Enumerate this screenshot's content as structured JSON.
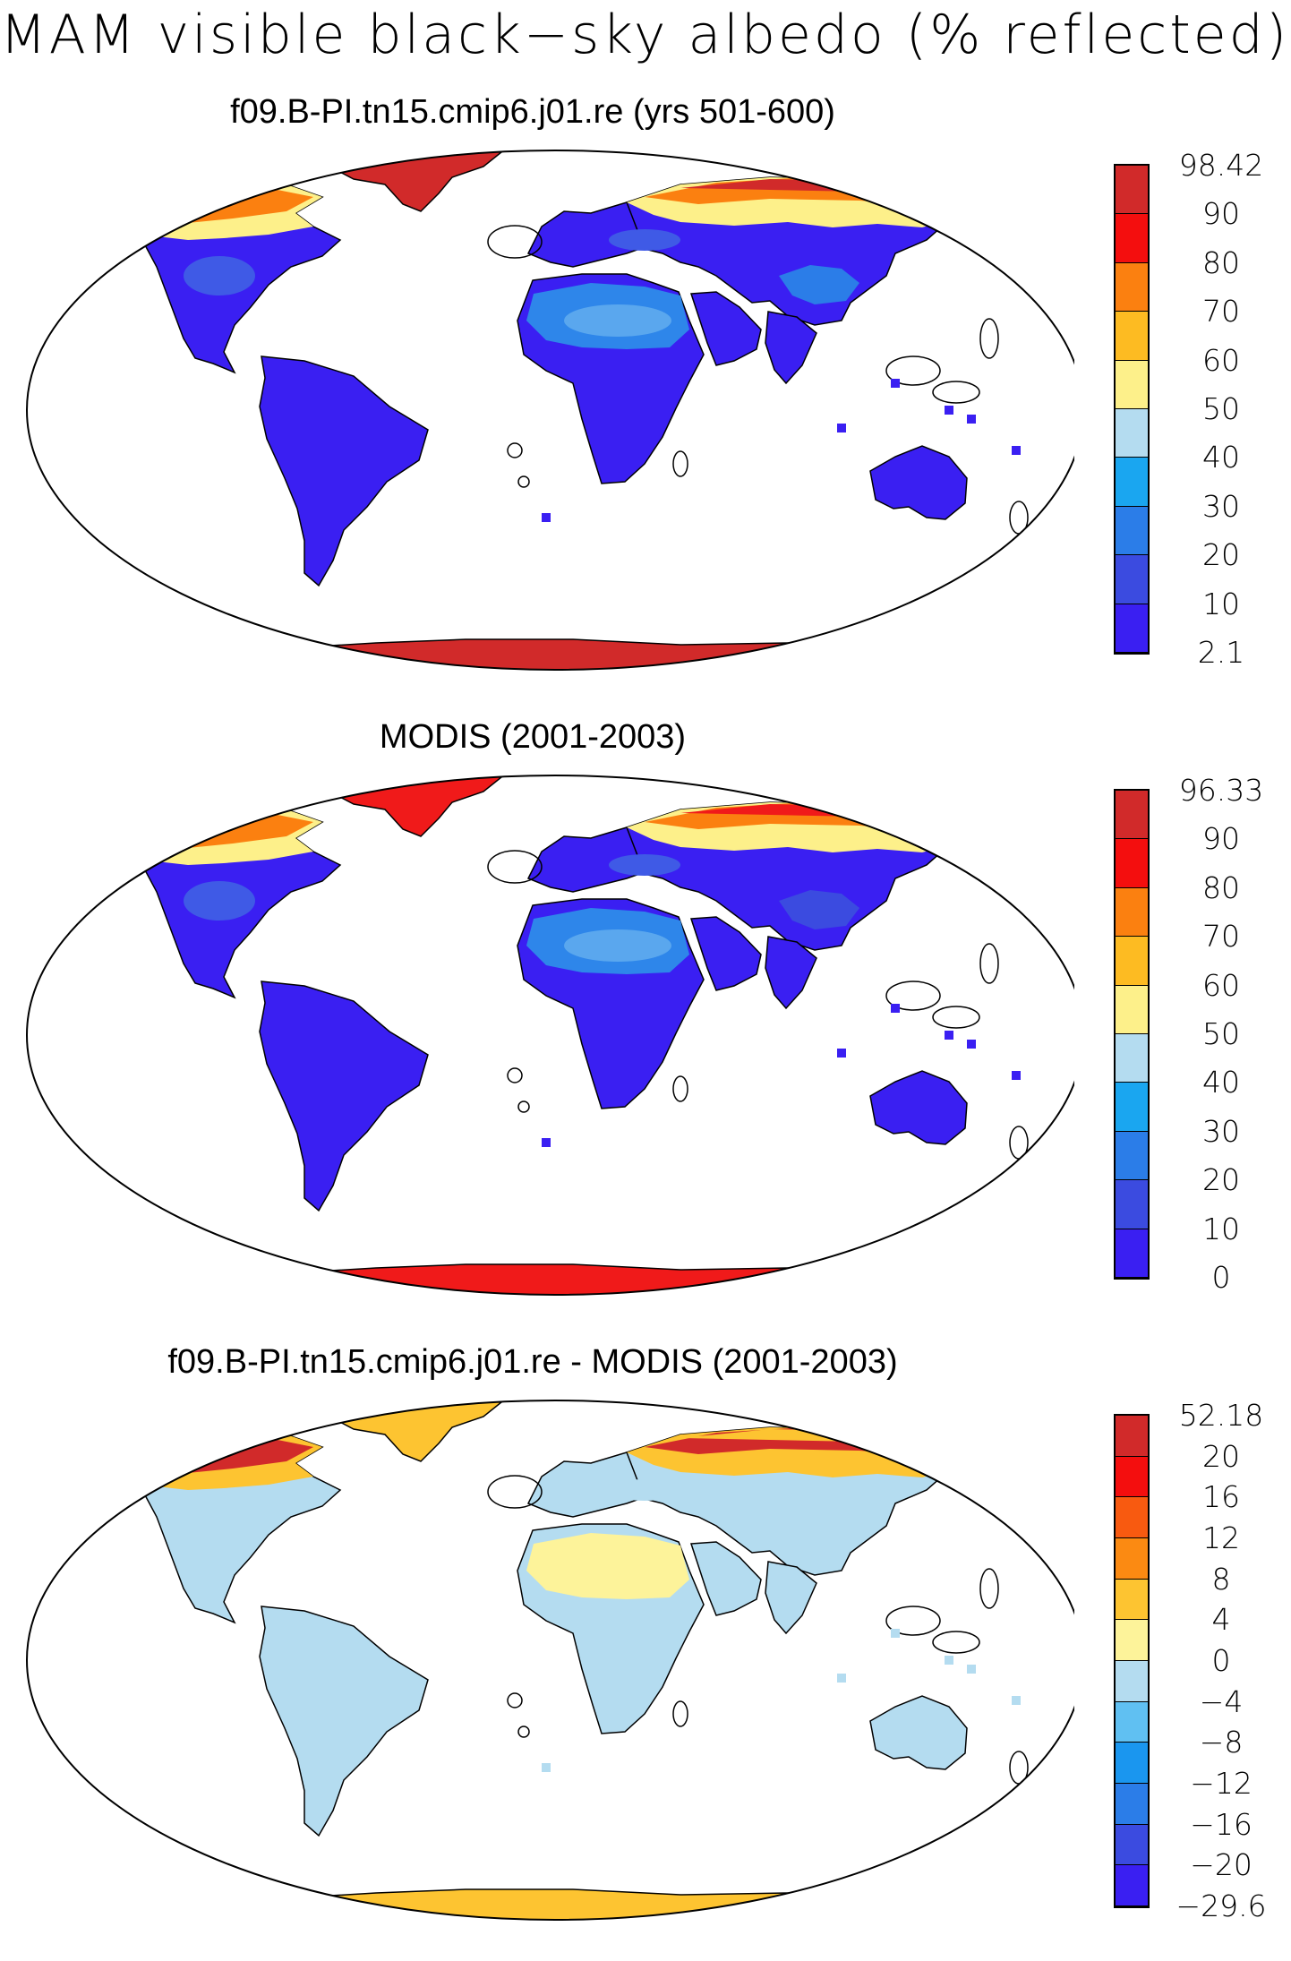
{
  "title": "MAM visible black−sky albedo (% reflected)",
  "panels": [
    {
      "id": "model",
      "title": "f09.B-PI.tn15.cmip6.j01.re (yrs 501-600)",
      "colorbar": {
        "colors": [
          "#3a1ff2",
          "#3b4be0",
          "#2b7de8",
          "#1aa6f0",
          "#b4dcf0",
          "#fdf08a",
          "#fdbb22",
          "#fb8010",
          "#f40e0e",
          "#d12a2a"
        ],
        "labels": [
          "2.1",
          "10",
          "20",
          "30",
          "40",
          "50",
          "60",
          "70",
          "80",
          "90",
          "98.42"
        ]
      },
      "palette": {
        "ocean": "#ffffff",
        "land": "#3a1ff2",
        "land2": "#3f5ae6",
        "desert": "#2e86ea",
        "desert2": "#5aa7ee",
        "snow1": "#fdf08a",
        "snow2": "#fb8010",
        "ice": "#d12a2a",
        "tibet": "#2b7de8"
      }
    },
    {
      "id": "obs",
      "title": "MODIS (2001-2003)",
      "colorbar": {
        "colors": [
          "#3a1ff2",
          "#3b4be0",
          "#2b7de8",
          "#1aa6f0",
          "#b4dcf0",
          "#fdf08a",
          "#fdbb22",
          "#fb8010",
          "#f40e0e",
          "#d12a2a"
        ],
        "labels": [
          "0",
          "10",
          "20",
          "30",
          "40",
          "50",
          "60",
          "70",
          "80",
          "90",
          "96.33"
        ]
      },
      "palette": {
        "ocean": "#ffffff",
        "land": "#3a1ff2",
        "land2": "#3f5ae6",
        "desert": "#2e86ea",
        "desert2": "#5aa7ee",
        "snow1": "#fdf08a",
        "snow2": "#fb8010",
        "ice": "#f01a1a",
        "tibet": "#3b4be0"
      }
    },
    {
      "id": "diff",
      "title": "f09.B-PI.tn15.cmip6.j01.re - MODIS (2001-2003)",
      "colorbar": {
        "colors": [
          "#3a1ff2",
          "#3b4be0",
          "#2b7de8",
          "#1a96ef",
          "#60c0f2",
          "#b4dcf0",
          "#fdf39a",
          "#fdc431",
          "#fb8a12",
          "#f85a10",
          "#f40e0e",
          "#d12a2a"
        ],
        "labels": [
          "−29.6",
          "−20",
          "−16",
          "−12",
          "−8",
          "−4",
          "0",
          "4",
          "8",
          "12",
          "16",
          "20",
          "52.18"
        ]
      },
      "palette": {
        "ocean": "#ffffff",
        "land": "#b4dcf0",
        "land2": "#b4dcf0",
        "desert": "#fdf39a",
        "desert2": "#fdf39a",
        "snow1": "#fdc431",
        "snow2": "#d12a2a",
        "ice": "#fdc431",
        "tibet": "#b4dcf0"
      }
    }
  ]
}
